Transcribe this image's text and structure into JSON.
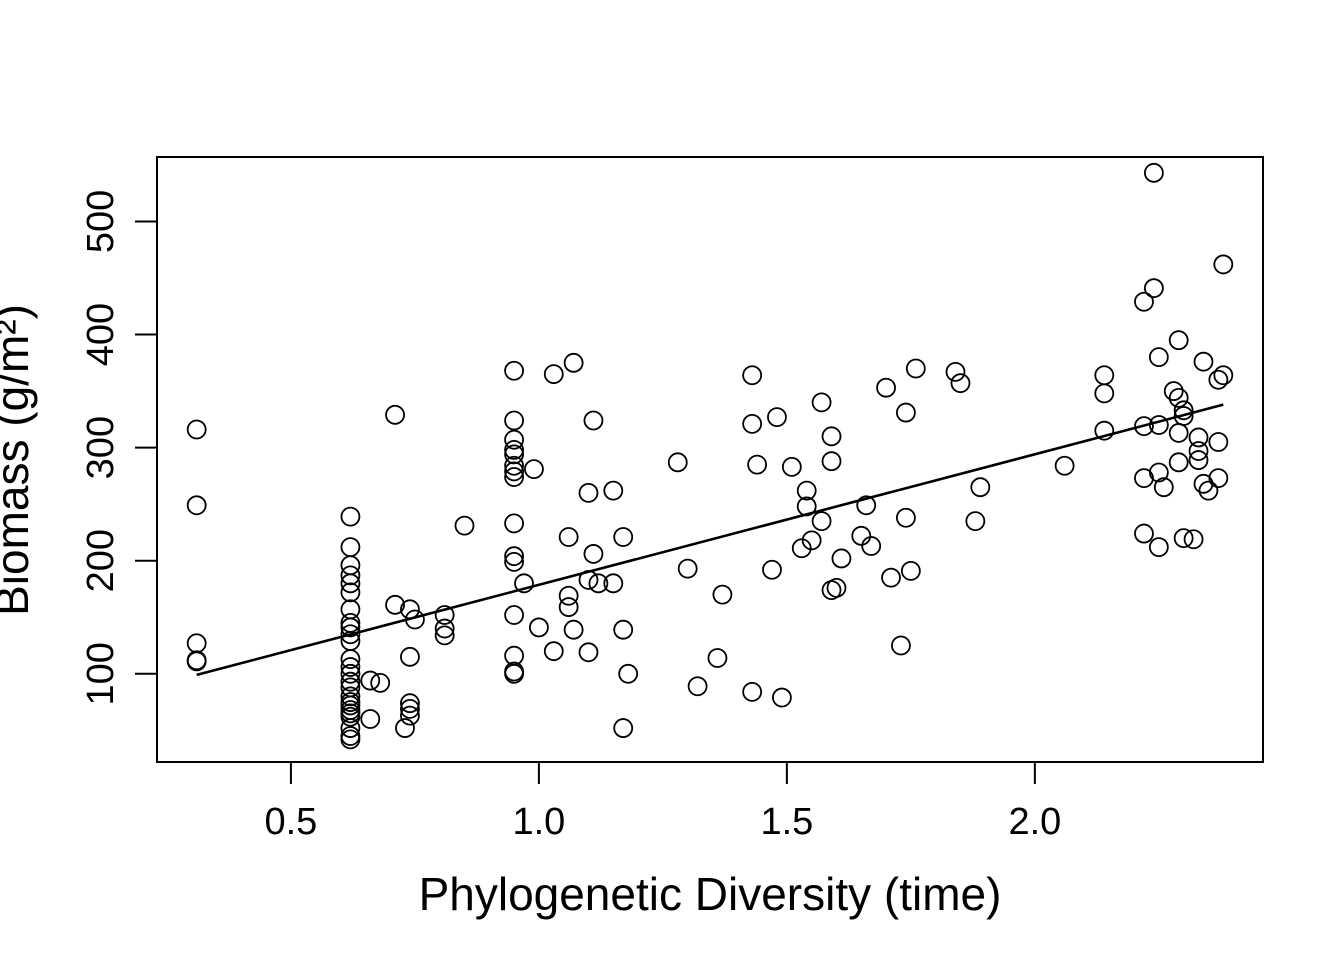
{
  "chart_data": {
    "type": "scatter",
    "title": "",
    "xlabel": "Phylogenetic Diversity (time)",
    "ylabel": "Biomass (g/m²)",
    "xlim": [
      0.23,
      2.46
    ],
    "ylim": [
      22,
      557
    ],
    "xticks": [
      "0.5",
      "1.0",
      "1.5",
      "2.0"
    ],
    "yticks": [
      "100",
      "200",
      "300",
      "400",
      "500"
    ],
    "grid": false,
    "marker": "open-circle",
    "series": [
      {
        "points": [
          [
            0.31,
            316
          ],
          [
            0.31,
            249
          ],
          [
            0.31,
            127
          ],
          [
            0.31,
            112
          ],
          [
            0.31,
            111
          ],
          [
            0.62,
            239
          ],
          [
            0.62,
            212
          ],
          [
            0.62,
            196
          ],
          [
            0.62,
            187
          ],
          [
            0.62,
            180
          ],
          [
            0.62,
            172
          ],
          [
            0.62,
            157
          ],
          [
            0.62,
            145
          ],
          [
            0.62,
            141
          ],
          [
            0.62,
            135
          ],
          [
            0.62,
            129
          ],
          [
            0.62,
            113
          ],
          [
            0.62,
            106
          ],
          [
            0.62,
            100
          ],
          [
            0.62,
            93
          ],
          [
            0.62,
            88
          ],
          [
            0.62,
            80
          ],
          [
            0.62,
            75
          ],
          [
            0.62,
            72
          ],
          [
            0.62,
            68
          ],
          [
            0.62,
            65
          ],
          [
            0.62,
            62
          ],
          [
            0.62,
            52
          ],
          [
            0.62,
            45
          ],
          [
            0.62,
            42
          ],
          [
            0.66,
            94
          ],
          [
            0.68,
            92
          ],
          [
            0.66,
            60
          ],
          [
            0.71,
            161
          ],
          [
            0.71,
            329
          ],
          [
            0.73,
            52
          ],
          [
            0.74,
            157
          ],
          [
            0.75,
            148
          ],
          [
            0.74,
            115
          ],
          [
            0.74,
            74
          ],
          [
            0.74,
            69
          ],
          [
            0.74,
            63
          ],
          [
            0.81,
            152
          ],
          [
            0.81,
            140
          ],
          [
            0.81,
            134
          ],
          [
            0.85,
            231
          ],
          [
            0.95,
            368
          ],
          [
            0.95,
            324
          ],
          [
            0.95,
            307
          ],
          [
            0.95,
            298
          ],
          [
            0.95,
            294
          ],
          [
            0.95,
            284
          ],
          [
            0.95,
            279
          ],
          [
            0.95,
            274
          ],
          [
            0.95,
            233
          ],
          [
            0.95,
            204
          ],
          [
            0.95,
            199
          ],
          [
            0.95,
            152
          ],
          [
            0.95,
            116
          ],
          [
            0.95,
            102
          ],
          [
            0.95,
            100
          ],
          [
            0.97,
            180
          ],
          [
            0.99,
            281
          ],
          [
            1.0,
            141
          ],
          [
            1.03,
            120
          ],
          [
            1.03,
            365
          ],
          [
            1.06,
            221
          ],
          [
            1.06,
            169
          ],
          [
            1.06,
            159
          ],
          [
            1.07,
            375
          ],
          [
            1.07,
            139
          ],
          [
            1.1,
            260
          ],
          [
            1.1,
            183
          ],
          [
            1.1,
            119
          ],
          [
            1.11,
            324
          ],
          [
            1.11,
            206
          ],
          [
            1.12,
            180
          ],
          [
            1.15,
            262
          ],
          [
            1.15,
            180
          ],
          [
            1.17,
            221
          ],
          [
            1.17,
            139
          ],
          [
            1.17,
            52
          ],
          [
            1.18,
            100
          ],
          [
            1.28,
            287
          ],
          [
            1.3,
            193
          ],
          [
            1.32,
            89
          ],
          [
            1.36,
            114
          ],
          [
            1.37,
            170
          ],
          [
            1.43,
            364
          ],
          [
            1.43,
            321
          ],
          [
            1.43,
            84
          ],
          [
            1.44,
            285
          ],
          [
            1.47,
            192
          ],
          [
            1.48,
            327
          ],
          [
            1.49,
            79
          ],
          [
            1.51,
            283
          ],
          [
            1.53,
            211
          ],
          [
            1.54,
            262
          ],
          [
            1.54,
            248
          ],
          [
            1.55,
            218
          ],
          [
            1.57,
            235
          ],
          [
            1.57,
            340
          ],
          [
            1.59,
            310
          ],
          [
            1.59,
            288
          ],
          [
            1.59,
            174
          ],
          [
            1.6,
            176
          ],
          [
            1.61,
            202
          ],
          [
            1.65,
            222
          ],
          [
            1.66,
            249
          ],
          [
            1.67,
            213
          ],
          [
            1.7,
            353
          ],
          [
            1.71,
            185
          ],
          [
            1.73,
            125
          ],
          [
            1.74,
            331
          ],
          [
            1.74,
            238
          ],
          [
            1.75,
            191
          ],
          [
            1.76,
            370
          ],
          [
            1.84,
            367
          ],
          [
            1.85,
            357
          ],
          [
            1.88,
            235
          ],
          [
            1.89,
            265
          ],
          [
            2.06,
            284
          ],
          [
            2.14,
            364
          ],
          [
            2.14,
            348
          ],
          [
            2.14,
            315
          ],
          [
            2.22,
            429
          ],
          [
            2.22,
            319
          ],
          [
            2.22,
            273
          ],
          [
            2.22,
            224
          ],
          [
            2.24,
            543
          ],
          [
            2.24,
            441
          ],
          [
            2.25,
            380
          ],
          [
            2.25,
            278
          ],
          [
            2.25,
            212
          ],
          [
            2.25,
            320
          ],
          [
            2.26,
            265
          ],
          [
            2.28,
            350
          ],
          [
            2.29,
            395
          ],
          [
            2.29,
            344
          ],
          [
            2.29,
            313
          ],
          [
            2.29,
            287
          ],
          [
            2.3,
            220
          ],
          [
            2.3,
            333
          ],
          [
            2.3,
            328
          ],
          [
            2.32,
            219
          ],
          [
            2.33,
            309
          ],
          [
            2.33,
            297
          ],
          [
            2.33,
            289
          ],
          [
            2.34,
            376
          ],
          [
            2.34,
            268
          ],
          [
            2.35,
            262
          ],
          [
            2.37,
            360
          ],
          [
            2.37,
            305
          ],
          [
            2.37,
            273
          ],
          [
            2.38,
            364
          ],
          [
            2.38,
            462
          ]
        ]
      }
    ],
    "fit_line": {
      "x": [
        0.31,
        2.38
      ],
      "y": [
        99,
        338
      ]
    }
  }
}
